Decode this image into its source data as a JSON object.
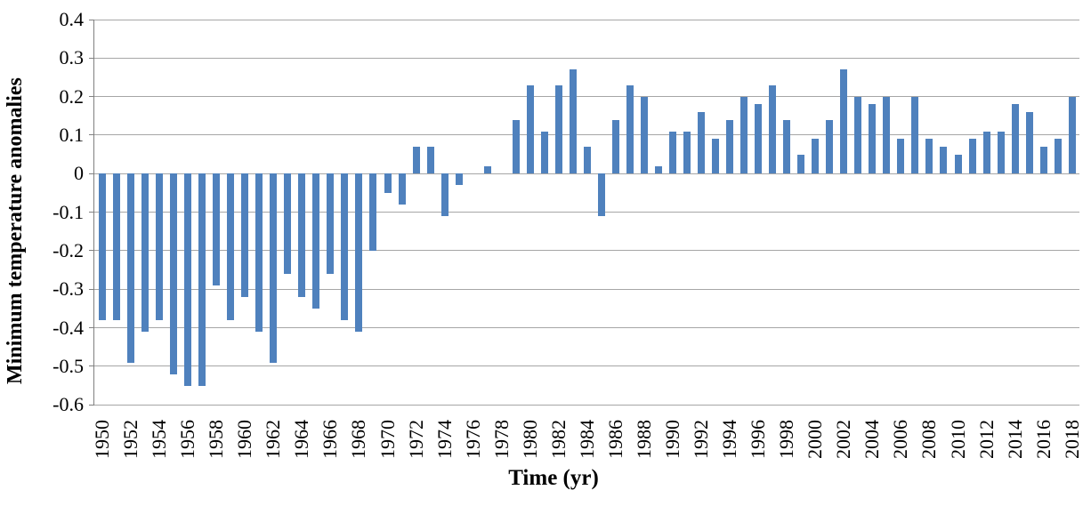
{
  "chart_data": {
    "type": "bar",
    "title": "",
    "xlabel": "Time (yr)",
    "ylabel": "Minimum temperature anomalies",
    "ylim": [
      -0.6,
      0.4
    ],
    "grid": true,
    "legend": false,
    "yticks": [
      0.4,
      0.3,
      0.2,
      0.1,
      0,
      -0.1,
      -0.2,
      -0.3,
      -0.4,
      -0.5,
      -0.6
    ],
    "ytick_labels": [
      "0.4",
      "0.3",
      "0.2",
      "0.1",
      "0",
      "-0.1",
      "-0.2",
      "-0.3",
      "-0.4",
      "-0.5",
      "-0.6"
    ],
    "xtick_labels": [
      "1950",
      "1952",
      "1954",
      "1956",
      "1958",
      "1960",
      "1962",
      "1964",
      "1966",
      "1968",
      "1970",
      "1972",
      "1974",
      "1976",
      "1978",
      "1980",
      "1982",
      "1984",
      "1986",
      "1988",
      "1990",
      "1992",
      "1994",
      "1996",
      "1998",
      "2000",
      "2002",
      "2004",
      "2006",
      "2008",
      "2010",
      "2012",
      "2014",
      "2016",
      "2018"
    ],
    "categories": [
      1950,
      1951,
      1952,
      1953,
      1954,
      1955,
      1956,
      1957,
      1958,
      1959,
      1960,
      1961,
      1962,
      1963,
      1964,
      1965,
      1966,
      1967,
      1968,
      1969,
      1970,
      1971,
      1972,
      1973,
      1974,
      1975,
      1976,
      1977,
      1978,
      1979,
      1980,
      1981,
      1982,
      1983,
      1984,
      1985,
      1986,
      1987,
      1988,
      1989,
      1990,
      1991,
      1992,
      1993,
      1994,
      1995,
      1996,
      1997,
      1998,
      1999,
      2000,
      2001,
      2002,
      2003,
      2004,
      2005,
      2006,
      2007,
      2008,
      2009,
      2010,
      2011,
      2012,
      2013,
      2014,
      2015,
      2016,
      2017,
      2018
    ],
    "values": [
      -0.38,
      -0.38,
      -0.49,
      -0.41,
      -0.38,
      -0.52,
      -0.55,
      -0.55,
      -0.29,
      -0.38,
      -0.32,
      -0.41,
      -0.49,
      -0.26,
      -0.32,
      -0.35,
      -0.26,
      -0.38,
      -0.41,
      -0.2,
      -0.05,
      -0.08,
      0.07,
      0.07,
      -0.11,
      -0.03,
      0,
      0.02,
      0,
      0.14,
      0.23,
      0.11,
      0.23,
      0.27,
      0.07,
      -0.11,
      0.14,
      0.23,
      0.2,
      0.02,
      0.11,
      0.11,
      0.16,
      0.09,
      0.14,
      0.2,
      0.18,
      0.23,
      0.14,
      0.05,
      0.09,
      0.14,
      0.27,
      0.2,
      0.18,
      0.2,
      0.09,
      0.2,
      0.09,
      0.07,
      0.05,
      0.09,
      0.11,
      0.11,
      0.18,
      0.16,
      0.07,
      0.09,
      0.2
    ],
    "colors": {
      "bar": "#4f81bd",
      "gridline": "#a6a6a6",
      "axis": "#808080",
      "text": "#000000"
    }
  }
}
